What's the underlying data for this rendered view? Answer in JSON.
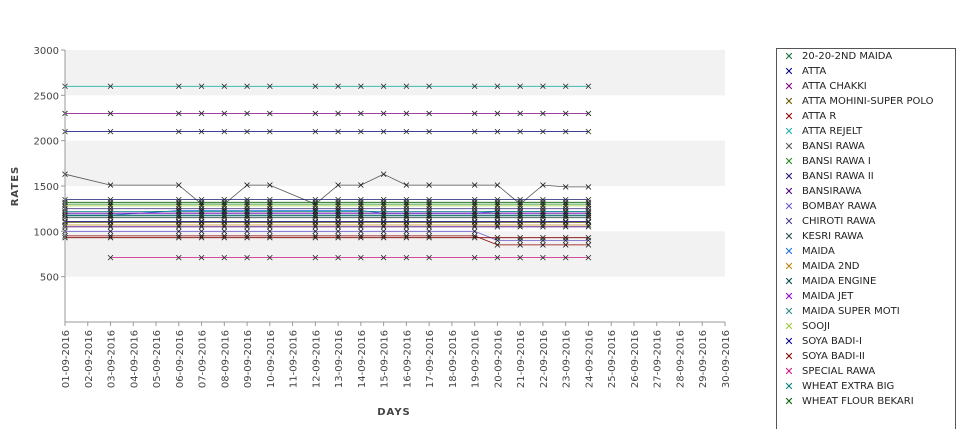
{
  "chart_data": {
    "type": "line",
    "xlabel": "DAYS",
    "ylabel": "RATES",
    "ylim": [
      0,
      3000
    ],
    "yticks": [
      500,
      1000,
      1500,
      2000,
      2500,
      3000
    ],
    "grid": "alternating horizontal bands",
    "legend_position": "right",
    "x": [
      "01-09-2016",
      "02-09-2016",
      "03-09-2016",
      "04-09-2016",
      "05-09-2016",
      "06-09-2016",
      "07-09-2016",
      "08-09-2016",
      "09-09-2016",
      "10-09-2016",
      "11-09-2016",
      "12-09-2016",
      "13-09-2016",
      "14-09-2016",
      "15-09-2016",
      "16-09-2016",
      "17-09-2016",
      "18-09-2016",
      "19-09-2016",
      "20-09-2016",
      "21-09-2016",
      "22-09-2016",
      "23-09-2016",
      "24-09-2016",
      "25-09-2016",
      "26-09-2016",
      "27-09-2016",
      "28-09-2016",
      "29-09-2016",
      "30-09-2016"
    ],
    "series": [
      {
        "name": "20-20-2ND MAIDA",
        "color": "#1b6b3a",
        "values": [
          1200,
          null,
          1200,
          null,
          null,
          1200,
          1200,
          1200,
          1200,
          1200,
          null,
          1200,
          1200,
          1200,
          1200,
          1200,
          1200,
          null,
          1200,
          1200,
          1200,
          1200,
          1200,
          1200,
          null,
          null,
          null,
          null,
          null,
          null
        ]
      },
      {
        "name": "ATTA",
        "color": "#000080",
        "values": [
          2100,
          null,
          2100,
          null,
          null,
          2100,
          2100,
          2100,
          2100,
          2100,
          null,
          2100,
          2100,
          2100,
          2100,
          2100,
          2100,
          null,
          2100,
          2100,
          2100,
          2100,
          2100,
          2100,
          null,
          null,
          null,
          null,
          null,
          null
        ]
      },
      {
        "name": "ATTA CHAKKI",
        "color": "#800080",
        "values": [
          2300,
          null,
          2300,
          null,
          null,
          2300,
          2300,
          2300,
          2300,
          2300,
          null,
          2300,
          2300,
          2300,
          2300,
          2300,
          2300,
          null,
          2300,
          2300,
          2300,
          2300,
          2300,
          2300,
          null,
          null,
          null,
          null,
          null,
          null
        ]
      },
      {
        "name": "ATTA MOHINI-SUPER POLO",
        "color": "#6b5b00",
        "values": [
          1100,
          null,
          1100,
          null,
          null,
          1100,
          1100,
          1100,
          1100,
          1100,
          null,
          1100,
          1100,
          1100,
          1100,
          1100,
          1100,
          null,
          1100,
          1100,
          1100,
          1100,
          1100,
          1100,
          null,
          null,
          null,
          null,
          null,
          null
        ]
      },
      {
        "name": "ATTA R",
        "color": "#8b0000",
        "values": [
          950,
          null,
          950,
          null,
          null,
          950,
          950,
          950,
          950,
          950,
          null,
          950,
          950,
          950,
          950,
          950,
          950,
          null,
          950,
          850,
          850,
          850,
          850,
          850,
          null,
          null,
          null,
          null,
          null,
          null
        ]
      },
      {
        "name": "ATTA REJELT",
        "color": "#20b2aa",
        "values": [
          2600,
          null,
          2600,
          null,
          null,
          2600,
          2600,
          2600,
          2600,
          2600,
          null,
          2600,
          2600,
          2600,
          2600,
          2600,
          2600,
          null,
          2600,
          2600,
          2600,
          2600,
          2600,
          2600,
          null,
          null,
          null,
          null,
          null,
          null
        ]
      },
      {
        "name": "BANSI RAWA",
        "color": "#555555",
        "values": [
          1630,
          null,
          1510,
          null,
          null,
          1510,
          1300,
          1300,
          1510,
          1510,
          null,
          1300,
          1510,
          1510,
          1630,
          1510,
          1510,
          null,
          1510,
          1510,
          1300,
          1510,
          1490,
          1490,
          null,
          null,
          null,
          null,
          null,
          null
        ]
      },
      {
        "name": "BANSI RAWA I",
        "color": "#228b22",
        "values": [
          1300,
          null,
          1300,
          null,
          null,
          1300,
          1300,
          1300,
          1300,
          1300,
          null,
          1300,
          1300,
          1300,
          1300,
          1300,
          1300,
          null,
          1300,
          1300,
          1300,
          1300,
          1300,
          1300,
          null,
          null,
          null,
          null,
          null,
          null
        ]
      },
      {
        "name": "BANSI RAWA II",
        "color": "#191970",
        "values": [
          1350,
          null,
          1350,
          null,
          null,
          1350,
          1350,
          1350,
          1350,
          1350,
          null,
          1350,
          1350,
          1350,
          1350,
          1350,
          1350,
          null,
          1350,
          1350,
          1350,
          1350,
          1350,
          1350,
          null,
          null,
          null,
          null,
          null,
          null
        ]
      },
      {
        "name": "BANSIRAWA",
        "color": "#4b0082",
        "values": [
          1050,
          null,
          1050,
          null,
          null,
          1050,
          1050,
          1050,
          1050,
          1050,
          null,
          1050,
          1050,
          1050,
          1050,
          1050,
          1050,
          null,
          1050,
          1050,
          1050,
          1050,
          1050,
          1050,
          null,
          null,
          null,
          null,
          null,
          null
        ]
      },
      {
        "name": "BOMBAY RAWA",
        "color": "#6a5acd",
        "values": [
          1000,
          null,
          1000,
          null,
          null,
          1000,
          1000,
          1000,
          1000,
          1000,
          null,
          1000,
          1000,
          1000,
          1000,
          1000,
          1000,
          null,
          1000,
          900,
          900,
          900,
          900,
          900,
          null,
          null,
          null,
          null,
          null,
          null
        ]
      },
      {
        "name": "CHIROTI RAWA",
        "color": "#483d8b",
        "values": [
          1250,
          null,
          1250,
          null,
          null,
          1250,
          1250,
          1250,
          1250,
          1250,
          null,
          1250,
          1250,
          1250,
          1250,
          1250,
          1250,
          null,
          1250,
          1250,
          1250,
          1250,
          1250,
          1250,
          null,
          null,
          null,
          null,
          null,
          null
        ]
      },
      {
        "name": "KESRI RAWA",
        "color": "#2f4f4f",
        "values": [
          1150,
          null,
          1150,
          null,
          null,
          1150,
          1150,
          1150,
          1150,
          1150,
          null,
          1150,
          1150,
          1150,
          1150,
          1150,
          1150,
          null,
          1150,
          1150,
          1150,
          1150,
          1150,
          1150,
          null,
          null,
          null,
          null,
          null,
          null
        ]
      },
      {
        "name": "MAIDA",
        "color": "#1e6fd9",
        "values": [
          1180,
          null,
          1180,
          null,
          null,
          1230,
          1230,
          1230,
          1230,
          1230,
          null,
          1230,
          1230,
          1230,
          1200,
          1200,
          1200,
          null,
          1200,
          1220,
          1220,
          1220,
          1220,
          1220,
          null,
          null,
          null,
          null,
          null,
          null
        ]
      },
      {
        "name": "MAIDA 2ND",
        "color": "#b8860b",
        "values": [
          1070,
          null,
          1070,
          null,
          null,
          1070,
          1070,
          1070,
          1070,
          1070,
          null,
          1070,
          1070,
          1070,
          1070,
          1070,
          1070,
          null,
          1070,
          1070,
          1070,
          1070,
          1070,
          1070,
          null,
          null,
          null,
          null,
          null,
          null
        ]
      },
      {
        "name": "MAIDA ENGINE",
        "color": "#004d4d",
        "values": [
          1170,
          null,
          1170,
          null,
          null,
          1170,
          1170,
          1170,
          1170,
          1170,
          null,
          1170,
          1170,
          1170,
          1170,
          1170,
          1170,
          null,
          1170,
          1170,
          1170,
          1170,
          1170,
          1170,
          null,
          null,
          null,
          null,
          null,
          null
        ]
      },
      {
        "name": "MAIDA JET",
        "color": "#9400d3",
        "values": [
          1200,
          null,
          1200,
          null,
          null,
          1200,
          1200,
          1200,
          1200,
          1200,
          null,
          1200,
          1200,
          1200,
          1200,
          1200,
          1200,
          null,
          1200,
          1200,
          1200,
          1200,
          1200,
          1200,
          null,
          null,
          null,
          null,
          null,
          null
        ]
      },
      {
        "name": "MAIDA SUPER MOTI",
        "color": "#2e8b8b",
        "values": [
          1180,
          null,
          1180,
          null,
          null,
          1180,
          1180,
          1180,
          1180,
          1180,
          null,
          1180,
          1180,
          1180,
          1180,
          1180,
          1180,
          null,
          1180,
          1180,
          1180,
          1180,
          1180,
          1180,
          null,
          null,
          null,
          null,
          null,
          null
        ]
      },
      {
        "name": "SOOJI",
        "color": "#9acd32",
        "values": [
          1280,
          null,
          1280,
          null,
          null,
          1280,
          1280,
          1280,
          1280,
          1280,
          null,
          1280,
          1280,
          1280,
          1280,
          1280,
          1280,
          null,
          1280,
          1280,
          1280,
          1280,
          1280,
          1280,
          null,
          null,
          null,
          null,
          null,
          null
        ]
      },
      {
        "name": "SOYA BADI-I",
        "color": "#00008b",
        "values": [
          1110,
          null,
          1110,
          null,
          null,
          1110,
          1110,
          1110,
          1110,
          1110,
          null,
          1110,
          1110,
          1110,
          1110,
          1110,
          1110,
          null,
          1110,
          1110,
          1110,
          1110,
          1110,
          1110,
          null,
          null,
          null,
          null,
          null,
          null
        ]
      },
      {
        "name": "SOYA BADI-II",
        "color": "#800000",
        "values": [
          930,
          null,
          930,
          null,
          null,
          930,
          930,
          930,
          930,
          930,
          null,
          930,
          930,
          930,
          930,
          930,
          930,
          null,
          930,
          930,
          930,
          930,
          930,
          930,
          null,
          null,
          null,
          null,
          null,
          null
        ]
      },
      {
        "name": "SPECIAL RAWA",
        "color": "#c71585",
        "values": [
          null,
          null,
          710,
          null,
          null,
          710,
          710,
          710,
          710,
          710,
          null,
          710,
          710,
          710,
          710,
          710,
          710,
          null,
          710,
          710,
          710,
          710,
          710,
          710,
          null,
          null,
          null,
          null,
          null,
          null
        ]
      },
      {
        "name": "WHEAT EXTRA BIG",
        "color": "#008080",
        "values": [
          1220,
          null,
          1220,
          null,
          null,
          1220,
          1220,
          1220,
          1220,
          1220,
          null,
          1220,
          1220,
          1220,
          1220,
          1220,
          1220,
          null,
          1220,
          1220,
          1220,
          1220,
          1220,
          1220,
          null,
          null,
          null,
          null,
          null,
          null
        ]
      },
      {
        "name": "WHEAT FLOUR BEKARI",
        "color": "#006400",
        "values": [
          1320,
          null,
          1320,
          null,
          null,
          1320,
          1320,
          1320,
          1320,
          1320,
          null,
          1320,
          1320,
          1320,
          1320,
          1320,
          1320,
          null,
          1320,
          1320,
          1320,
          1320,
          1320,
          1320,
          null,
          null,
          null,
          null,
          null,
          null
        ]
      }
    ]
  }
}
